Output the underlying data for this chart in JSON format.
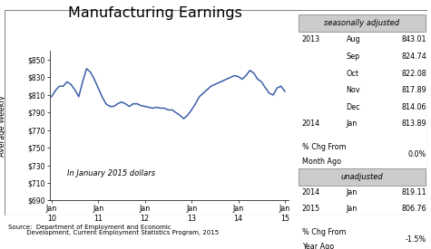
{
  "title": "Manufacturing Earnings",
  "ylabel": "Average Weekly",
  "annotation": "In January 2015 dollars",
  "source": "Source:  Department of Employment and Economic\n         Development, Current Employment Statistics Program, 2015",
  "ylim": [
    690,
    860
  ],
  "yticks": [
    690,
    710,
    730,
    750,
    770,
    790,
    810,
    830,
    850
  ],
  "ytick_labels": [
    "$690",
    "$710",
    "$730",
    "$750",
    "$770",
    "$790",
    "$810",
    "$830",
    "$850"
  ],
  "xtick_labels": [
    "Jan\n10",
    "Jan\n11",
    "Jan\n12",
    "Jan\n13",
    "Jan\n14",
    "Jan\n15"
  ],
  "line_color": "#3a5ea8",
  "line_width": 1.1,
  "sa_header": "seasonally adjusted",
  "sa_rows": [
    [
      "2013",
      "Aug",
      "843.01"
    ],
    [
      "",
      "Sep",
      "824.74"
    ],
    [
      "",
      "Oct",
      "822.08"
    ],
    [
      "",
      "Nov",
      "817.89"
    ],
    [
      "",
      "Dec",
      "814.06"
    ],
    [
      "2014",
      "Jan",
      "813.89"
    ]
  ],
  "sa_pct_label1": "% Chg From",
  "sa_pct_label2": "Month Ago",
  "sa_pct_value": "0.0%",
  "ua_header": "unadjusted",
  "ua_rows": [
    [
      "2014",
      "Jan",
      "819.11"
    ],
    [
      "2015",
      "Jan",
      "806.76"
    ]
  ],
  "ua_pct_label1": "% Chg From",
  "ua_pct_label2": "Year Ago",
  "ua_pct_value": "-1.5%",
  "data_y": [
    808,
    815,
    820,
    820,
    825,
    822,
    816,
    808,
    825,
    840,
    836,
    828,
    818,
    808,
    800,
    797,
    797,
    800,
    802,
    800,
    797,
    800,
    800,
    798,
    797,
    796,
    795,
    796,
    795,
    795,
    793,
    793,
    790,
    787,
    783,
    787,
    793,
    800,
    808,
    812,
    816,
    820,
    822,
    824,
    826,
    828,
    830,
    832,
    831,
    828,
    832,
    838,
    835,
    828,
    825,
    818,
    812,
    810,
    818,
    820,
    814
  ]
}
